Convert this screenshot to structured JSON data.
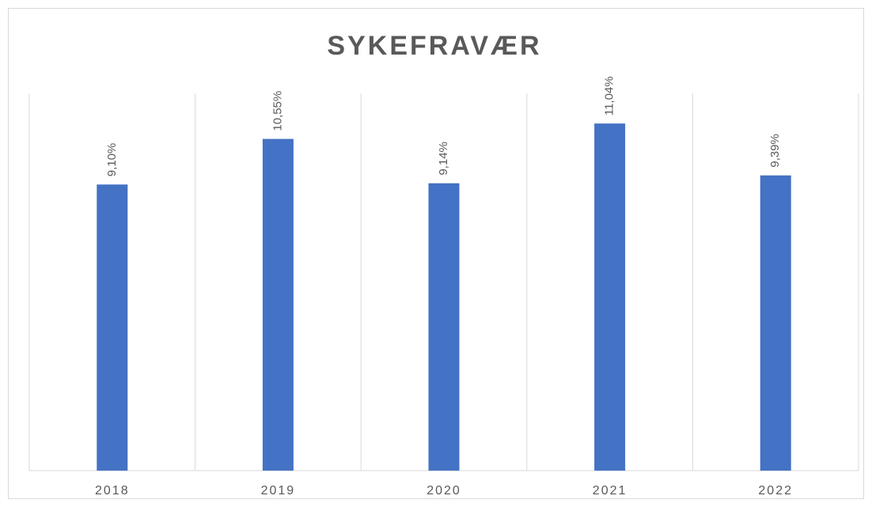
{
  "chart_data": {
    "type": "bar",
    "title": "SYKEFRAVÆR",
    "categories": [
      "2018",
      "2019",
      "2020",
      "2021",
      "2022"
    ],
    "values": [
      9.1,
      10.55,
      9.14,
      11.04,
      9.39
    ],
    "value_labels": [
      "9,10%",
      "10,55%",
      "9,14%",
      "11,04%",
      "9,39%"
    ],
    "color": "#4472c4",
    "ylim": [
      0,
      12
    ]
  }
}
